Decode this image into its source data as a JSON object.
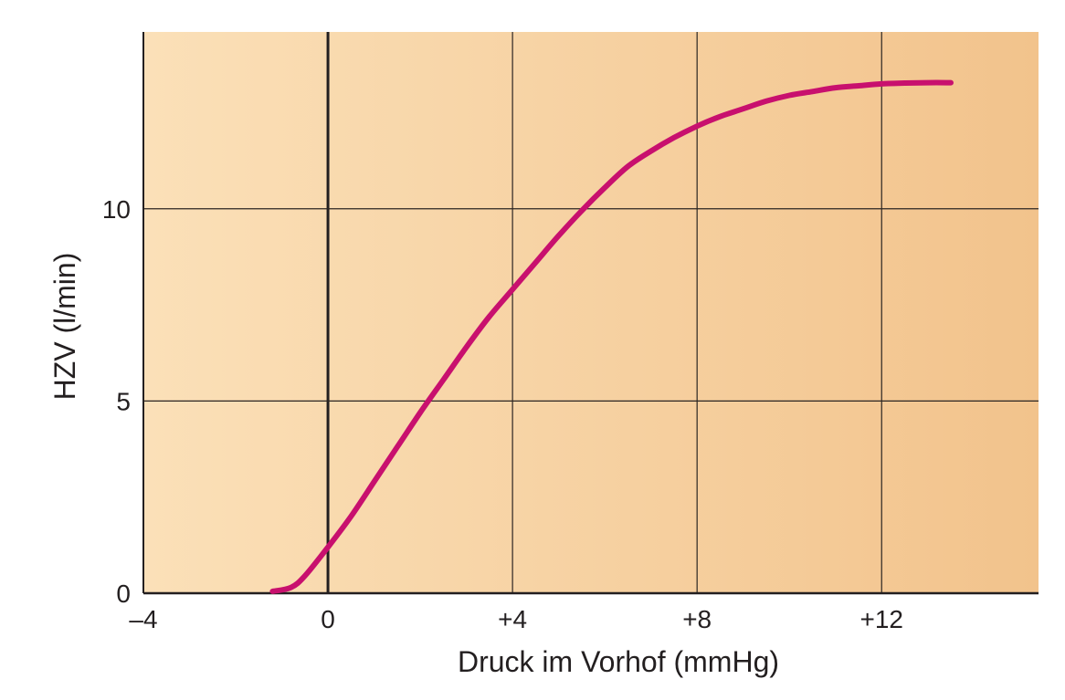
{
  "chart_data": {
    "type": "line",
    "title": "",
    "xlabel": "Druck im Vorhof (mmHg)",
    "ylabel": "HZV (l/min)",
    "xlim": [
      -4,
      15.4
    ],
    "ylim": [
      0,
      14.6
    ],
    "x_ticks": [
      {
        "value": -4,
        "label": "–4"
      },
      {
        "value": 0,
        "label": "0"
      },
      {
        "value": 4,
        "label": "+4"
      },
      {
        "value": 8,
        "label": "+8"
      },
      {
        "value": 12,
        "label": "+12"
      }
    ],
    "y_ticks": [
      {
        "value": 0,
        "label": "0"
      },
      {
        "value": 5,
        "label": "5"
      },
      {
        "value": 10,
        "label": "10"
      }
    ],
    "grid": true,
    "series": [
      {
        "color": "#c8106e",
        "x": [
          -1.2,
          -0.8,
          -0.5,
          0,
          0.5,
          1,
          1.5,
          2,
          2.5,
          3,
          3.5,
          4,
          4.5,
          5,
          5.5,
          6,
          6.5,
          7,
          7.5,
          8,
          8.5,
          9,
          9.5,
          10,
          10.5,
          11,
          11.5,
          12,
          12.5,
          13,
          13.5
        ],
        "y": [
          0.05,
          0.15,
          0.45,
          1.2,
          2.0,
          2.9,
          3.8,
          4.7,
          5.55,
          6.4,
          7.2,
          7.9,
          8.6,
          9.3,
          9.95,
          10.55,
          11.1,
          11.5,
          11.85,
          12.15,
          12.4,
          12.6,
          12.8,
          12.95,
          13.05,
          13.15,
          13.2,
          13.25,
          13.27,
          13.28,
          13.28
        ]
      }
    ],
    "colors": {
      "plot_background_left": "#fbe0b8",
      "plot_background_right": "#f2c38c",
      "grid": "#2b2522",
      "axis": "#231f20",
      "curve": "#c8106e"
    }
  }
}
